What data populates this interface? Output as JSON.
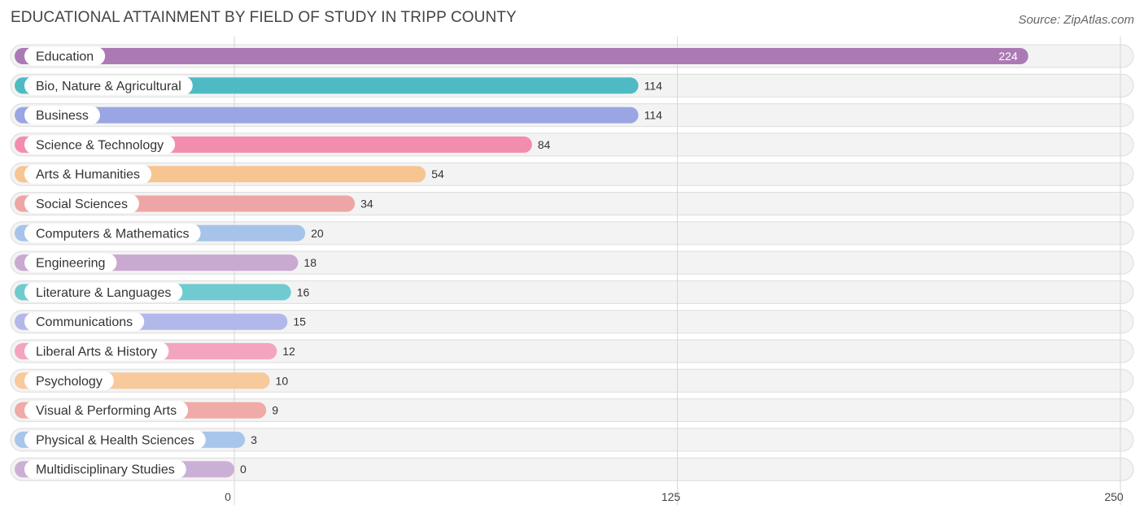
{
  "title": "EDUCATIONAL ATTAINMENT BY FIELD OF STUDY IN TRIPP COUNTY",
  "source": "Source: ZipAtlas.com",
  "chart_data": {
    "type": "bar",
    "orientation": "horizontal",
    "title": "EDUCATIONAL ATTAINMENT BY FIELD OF STUDY IN TRIPP COUNTY",
    "xlabel": "",
    "ylabel": "",
    "xlim": [
      0,
      250
    ],
    "xticks": [
      0,
      125,
      250
    ],
    "grid": true,
    "categories": [
      "Education",
      "Bio, Nature & Agricultural",
      "Business",
      "Science & Technology",
      "Arts & Humanities",
      "Social Sciences",
      "Computers & Mathematics",
      "Engineering",
      "Literature & Languages",
      "Communications",
      "Liberal Arts & History",
      "Psychology",
      "Visual & Performing Arts",
      "Physical & Health Sciences",
      "Multidisciplinary Studies"
    ],
    "values": [
      224,
      114,
      114,
      84,
      54,
      34,
      20,
      18,
      16,
      15,
      12,
      10,
      9,
      3,
      0
    ],
    "colors": [
      "#ab7ab4",
      "#4fbac4",
      "#9aa6e3",
      "#f28dad",
      "#f7c592",
      "#eda6a5",
      "#a6c4ea",
      "#c9a9d0",
      "#6fcbcf",
      "#b3b8ea",
      "#f3a4c0",
      "#f8c99b",
      "#f0aaa8",
      "#a8c6ea",
      "#cbb0d6"
    ]
  }
}
